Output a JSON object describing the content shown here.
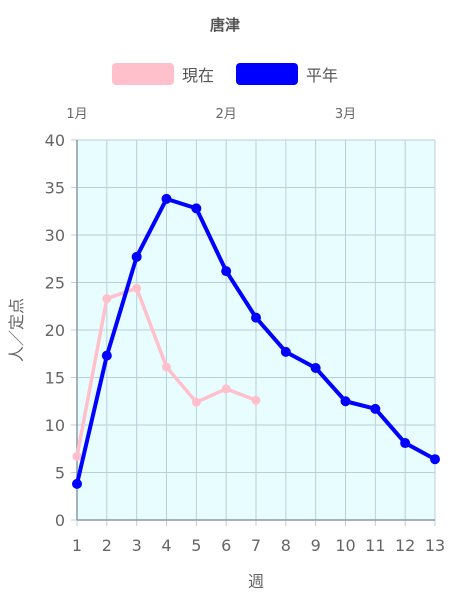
{
  "chart_data": {
    "type": "line",
    "title": "唐津",
    "xlabel": "週",
    "ylabel": "人／定点",
    "x": [
      1,
      2,
      3,
      4,
      5,
      6,
      7,
      8,
      9,
      10,
      11,
      12,
      13
    ],
    "ylim": [
      0,
      40
    ],
    "yticks": [
      0,
      5,
      10,
      15,
      20,
      25,
      30,
      35,
      40
    ],
    "month_labels": [
      {
        "label": "1月",
        "week": 1
      },
      {
        "label": "2月",
        "week": 6
      },
      {
        "label": "3月",
        "week": 10
      }
    ],
    "grid": true,
    "legend_position": "top",
    "series": [
      {
        "name": "現在",
        "color": "#ffc0cb",
        "values": [
          6.7,
          23.3,
          24.4,
          16.1,
          12.4,
          13.8,
          12.6,
          null,
          null,
          null,
          null,
          null,
          null
        ]
      },
      {
        "name": "平年",
        "color": "#0000ff",
        "values": [
          3.8,
          17.3,
          27.7,
          33.8,
          32.8,
          26.2,
          21.3,
          17.7,
          16.0,
          12.5,
          11.7,
          8.1,
          6.4
        ]
      }
    ],
    "plot_background": "#e8fdff"
  }
}
